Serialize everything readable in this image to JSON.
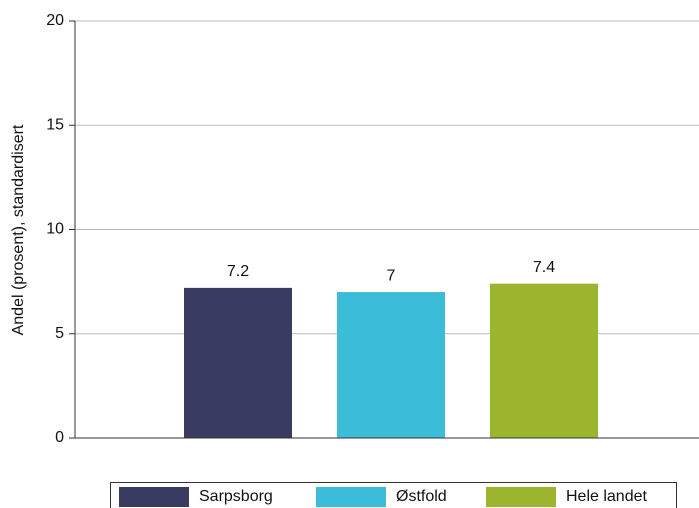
{
  "chart_data": {
    "type": "bar",
    "y_label": "Andel (prosent), standardisert",
    "categories": [
      null
    ],
    "series": [
      {
        "name": "Sarpsborg",
        "color": "#3a3b61",
        "values": [
          7.2
        ]
      },
      {
        "name": "Østfold",
        "color": "#3bbcd9",
        "values": [
          7
        ]
      },
      {
        "name": "Hele landet",
        "color": "#9bb52e",
        "values": [
          7.4
        ]
      }
    ],
    "ylim": [
      0,
      20
    ],
    "yticks": [
      0,
      5,
      10,
      15,
      20
    ],
    "grid": true,
    "legend": "bottom"
  }
}
